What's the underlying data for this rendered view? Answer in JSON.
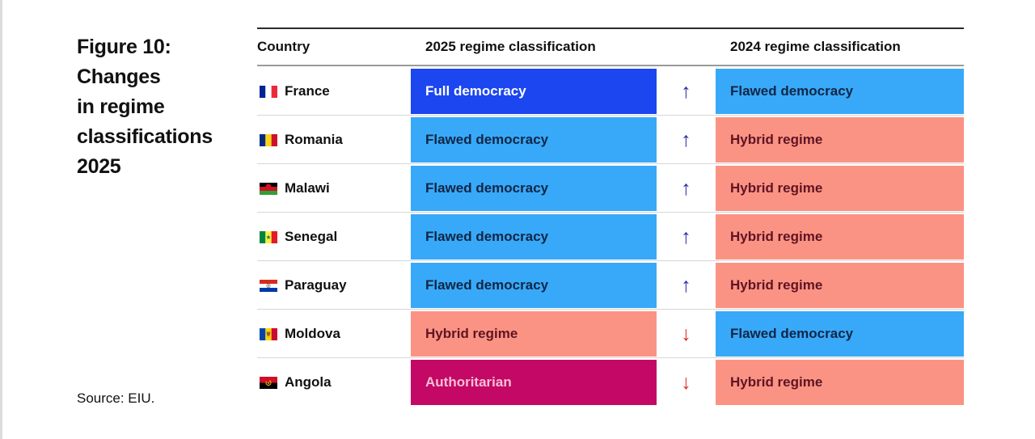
{
  "figure": {
    "title": "Figure 10:\nChanges\nin regime\nclassifications\n2025",
    "source": "Source: EIU."
  },
  "table": {
    "headers": {
      "country": "Country",
      "y2025": "2025 regime classification",
      "y2024": "2024 regime classification"
    },
    "rows": [
      {
        "country": "France",
        "flag": "france",
        "c2025": {
          "label": "Full democracy",
          "type": "full-democracy"
        },
        "direction": "up",
        "arrow_glyph": "↑",
        "c2024": {
          "label": "Flawed democracy",
          "type": "flawed-democracy"
        }
      },
      {
        "country": "Romania",
        "flag": "romania",
        "c2025": {
          "label": "Flawed democracy",
          "type": "flawed-democracy"
        },
        "direction": "up",
        "arrow_glyph": "↑",
        "c2024": {
          "label": "Hybrid regime",
          "type": "hybrid-regime"
        }
      },
      {
        "country": "Malawi",
        "flag": "malawi",
        "c2025": {
          "label": "Flawed democracy",
          "type": "flawed-democracy"
        },
        "direction": "up",
        "arrow_glyph": "↑",
        "c2024": {
          "label": "Hybrid regime",
          "type": "hybrid-regime"
        }
      },
      {
        "country": "Senegal",
        "flag": "senegal",
        "c2025": {
          "label": "Flawed democracy",
          "type": "flawed-democracy"
        },
        "direction": "up",
        "arrow_glyph": "↑",
        "c2024": {
          "label": "Hybrid regime",
          "type": "hybrid-regime"
        }
      },
      {
        "country": "Paraguay",
        "flag": "paraguay",
        "c2025": {
          "label": "Flawed democracy",
          "type": "flawed-democracy"
        },
        "direction": "up",
        "arrow_glyph": "↑",
        "c2024": {
          "label": "Hybrid regime",
          "type": "hybrid-regime"
        }
      },
      {
        "country": "Moldova",
        "flag": "moldova",
        "c2025": {
          "label": "Hybrid regime",
          "type": "hybrid-regime"
        },
        "direction": "down",
        "arrow_glyph": "↓",
        "c2024": {
          "label": "Flawed democracy",
          "type": "flawed-democracy"
        }
      },
      {
        "country": "Angola",
        "flag": "angola",
        "c2025": {
          "label": "Authoritarian",
          "type": "authoritarian"
        },
        "direction": "down",
        "arrow_glyph": "↓",
        "c2024": {
          "label": "Hybrid regime",
          "type": "hybrid-regime"
        }
      }
    ]
  },
  "colors": {
    "classification": {
      "full-democracy": {
        "bg": "#1b46f0",
        "text": "#ffffff"
      },
      "flawed-democracy": {
        "bg": "#38a9f8",
        "text": "#112646"
      },
      "hybrid-regime": {
        "bg": "#fb9384",
        "text": "#5e1422"
      },
      "authoritarian": {
        "bg": "#c30865",
        "text": "#f8bfd6"
      }
    },
    "arrow_up": "#2a2aa2",
    "arrow_down": "#e02a2a"
  },
  "chart_data": {
    "type": "table",
    "title": "Figure 10: Changes in regime classifications 2025",
    "source": "Source: EIU.",
    "columns": [
      "Country",
      "2025 regime classification",
      "change direction",
      "2024 regime classification"
    ],
    "rows": [
      [
        "France",
        "Full democracy",
        "up",
        "Flawed democracy"
      ],
      [
        "Romania",
        "Flawed democracy",
        "up",
        "Hybrid regime"
      ],
      [
        "Malawi",
        "Flawed democracy",
        "up",
        "Hybrid regime"
      ],
      [
        "Senegal",
        "Flawed democracy",
        "up",
        "Hybrid regime"
      ],
      [
        "Paraguay",
        "Flawed democracy",
        "up",
        "Hybrid regime"
      ],
      [
        "Moldova",
        "Hybrid regime",
        "down",
        "Flawed democracy"
      ],
      [
        "Angola",
        "Authoritarian",
        "down",
        "Hybrid regime"
      ]
    ]
  }
}
